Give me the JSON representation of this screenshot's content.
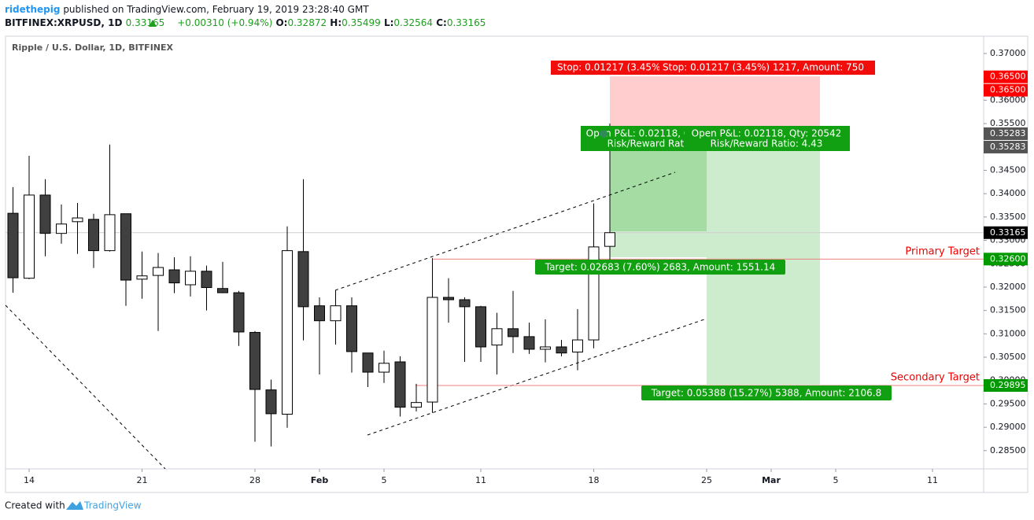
{
  "chart_data": {
    "type": "candlestick",
    "header": {
      "author": "ridethepig",
      "published": "published on TradingView.com, February 19, 2019 23:28:40 GMT",
      "symbol": "BITFINEX:XRPUSD, 1D",
      "change": "+0.00310 (+0.94%)",
      "ohlc_labels": [
        "O:",
        "H:",
        "L:",
        "C:"
      ]
    },
    "title": "Ripple / U.S. Dollar, 1D, BITFINEX",
    "x": [
      "2019-01-13",
      "2019-01-14",
      "2019-01-15",
      "2019-01-16",
      "2019-01-17",
      "2019-01-18",
      "2019-01-19",
      "2019-01-20",
      "2019-01-21",
      "2019-01-22",
      "2019-01-23",
      "2019-01-24",
      "2019-01-25",
      "2019-01-26",
      "2019-01-27",
      "2019-01-28",
      "2019-01-29",
      "2019-01-30",
      "2019-01-31",
      "2019-02-01",
      "2019-02-02",
      "2019-02-03",
      "2019-02-04",
      "2019-02-05",
      "2019-02-06",
      "2019-02-07",
      "2019-02-08",
      "2019-02-09",
      "2019-02-10",
      "2019-02-11",
      "2019-02-12",
      "2019-02-13",
      "2019-02-14",
      "2019-02-15",
      "2019-02-16",
      "2019-02-17",
      "2019-02-18",
      "2019-02-19"
    ],
    "open": [
      0.3358,
      0.3219,
      0.3397,
      0.3315,
      0.334,
      0.3345,
      0.3278,
      0.3357,
      0.3217,
      0.3225,
      0.3237,
      0.3205,
      0.3234,
      0.3197,
      0.3188,
      0.3103,
      0.298,
      0.2928,
      0.3276,
      0.316,
      0.3128,
      0.316,
      0.3059,
      0.3018,
      0.304,
      0.2943,
      0.2954,
      0.3178,
      0.3173,
      0.3158,
      0.3076,
      0.3111,
      0.3094,
      0.3067,
      0.3072,
      0.3061,
      0.3087,
      0.32872
    ],
    "high": [
      0.3414,
      0.3481,
      0.3431,
      0.3377,
      0.338,
      0.3357,
      0.3505,
      0.3357,
      0.3276,
      0.3273,
      0.3264,
      0.3266,
      0.3246,
      0.3254,
      0.3192,
      0.3106,
      0.3002,
      0.333,
      0.3431,
      0.3178,
      0.3193,
      0.3178,
      0.3059,
      0.3064,
      0.3052,
      0.2993,
      0.3262,
      0.3219,
      0.3178,
      0.316,
      0.3145,
      0.3192,
      0.3124,
      0.3131,
      0.3087,
      0.3153,
      0.3379,
      0.35499
    ],
    "low": [
      0.3188,
      0.3217,
      0.3266,
      0.3293,
      0.3271,
      0.3241,
      0.3276,
      0.316,
      0.3175,
      0.3106,
      0.3187,
      0.318,
      0.315,
      0.3187,
      0.3074,
      0.2869,
      0.2859,
      0.2899,
      0.3086,
      0.3013,
      0.3077,
      0.3017,
      0.2986,
      0.2995,
      0.2923,
      0.2934,
      0.2931,
      0.3124,
      0.304,
      0.304,
      0.3013,
      0.3059,
      0.3057,
      0.3039,
      0.3052,
      0.3022,
      0.3069,
      0.32564
    ],
    "close": [
      0.322,
      0.3397,
      0.3315,
      0.3335,
      0.3348,
      0.3278,
      0.3355,
      0.3215,
      0.3224,
      0.3242,
      0.3209,
      0.3234,
      0.3199,
      0.3188,
      0.3104,
      0.2981,
      0.2929,
      0.3278,
      0.3158,
      0.3128,
      0.316,
      0.3062,
      0.3018,
      0.3037,
      0.2943,
      0.2953,
      0.3178,
      0.3173,
      0.3158,
      0.3072,
      0.3111,
      0.3094,
      0.3067,
      0.3072,
      0.3059,
      0.3087,
      0.3286,
      0.33165
    ],
    "up_color": "#ffffff",
    "down_color": "#404040",
    "border_color": "#000000",
    "xlim": [
      "2019-01-12",
      "2019-03-14"
    ],
    "xticks": [
      {
        "value": "2019-01-14",
        "label": "14"
      },
      {
        "value": "2019-01-21",
        "label": "21"
      },
      {
        "value": "2019-01-28",
        "label": "28"
      },
      {
        "value": "2019-02-01",
        "label": "Feb"
      },
      {
        "value": "2019-02-05",
        "label": "5"
      },
      {
        "value": "2019-02-11",
        "label": "11"
      },
      {
        "value": "2019-02-18",
        "label": "18"
      },
      {
        "value": "2019-02-25",
        "label": "25"
      },
      {
        "value": "2019-03-01",
        "label": "Mar"
      },
      {
        "value": "2019-03-05",
        "label": "5"
      },
      {
        "value": "2019-03-11",
        "label": "11"
      }
    ],
    "ylim": [
      0.2811,
      0.3737
    ],
    "yticks": [
      {
        "value": 0.285,
        "label": "0.28500"
      },
      {
        "value": 0.29,
        "label": "0.29000"
      },
      {
        "value": 0.295,
        "label": "0.29500"
      },
      {
        "value": 0.3,
        "label": "0.30000"
      },
      {
        "value": 0.305,
        "label": "0.30500"
      },
      {
        "value": 0.31,
        "label": "0.31000"
      },
      {
        "value": 0.315,
        "label": "0.31500"
      },
      {
        "value": 0.32,
        "label": "0.32000"
      },
      {
        "value": 0.325,
        "label": "0.32500"
      },
      {
        "value": 0.33,
        "label": "0.33000"
      },
      {
        "value": 0.335,
        "label": "0.33500"
      },
      {
        "value": 0.34,
        "label": "0.34000"
      },
      {
        "value": 0.345,
        "label": "0.34500"
      },
      {
        "value": 0.35,
        "label": "0.35000"
      },
      {
        "value": 0.355,
        "label": "0.35500"
      },
      {
        "value": 0.36,
        "label": "0.36000"
      },
      {
        "value": 0.365,
        "label": "0.36500"
      },
      {
        "value": 0.37,
        "label": "0.37000"
      }
    ],
    "grid": false,
    "price_labels": [
      {
        "value": 0.365,
        "label": "0.36500",
        "color": "#ff0000"
      },
      {
        "value": 0.365,
        "label": "0.36500",
        "color": "#ff0000"
      },
      {
        "value": 0.35283,
        "label": "0.35283",
        "color": "#555555"
      },
      {
        "value": 0.35283,
        "label": "0.35283",
        "color": "#555555"
      },
      {
        "value": 0.33165,
        "label": "0.33165",
        "color": "#000000"
      },
      {
        "value": 0.326,
        "label": "0.32600",
        "color": "#009900"
      },
      {
        "value": 0.29895,
        "label": "0.29895",
        "color": "#009900"
      }
    ],
    "annotations": {
      "stop": "Stop: 0.01217 (3.45%) 1217, Amount: 750",
      "open_pnl": "Open P&L: 0.02118, Qty: 20542",
      "risk_reward": "Risk/Reward Ratio: 4.43",
      "target_1": "Target: 0.02683 (7.60%) 2683, Amount: 1551.14",
      "target_2": "Target: 0.05388 (15.27%) 5388, Amount: 2106.8",
      "primary": "Primary Target",
      "secondary": "Secondary Target"
    },
    "footer": {
      "created": "Created with",
      "brand": "TradingView"
    }
  }
}
